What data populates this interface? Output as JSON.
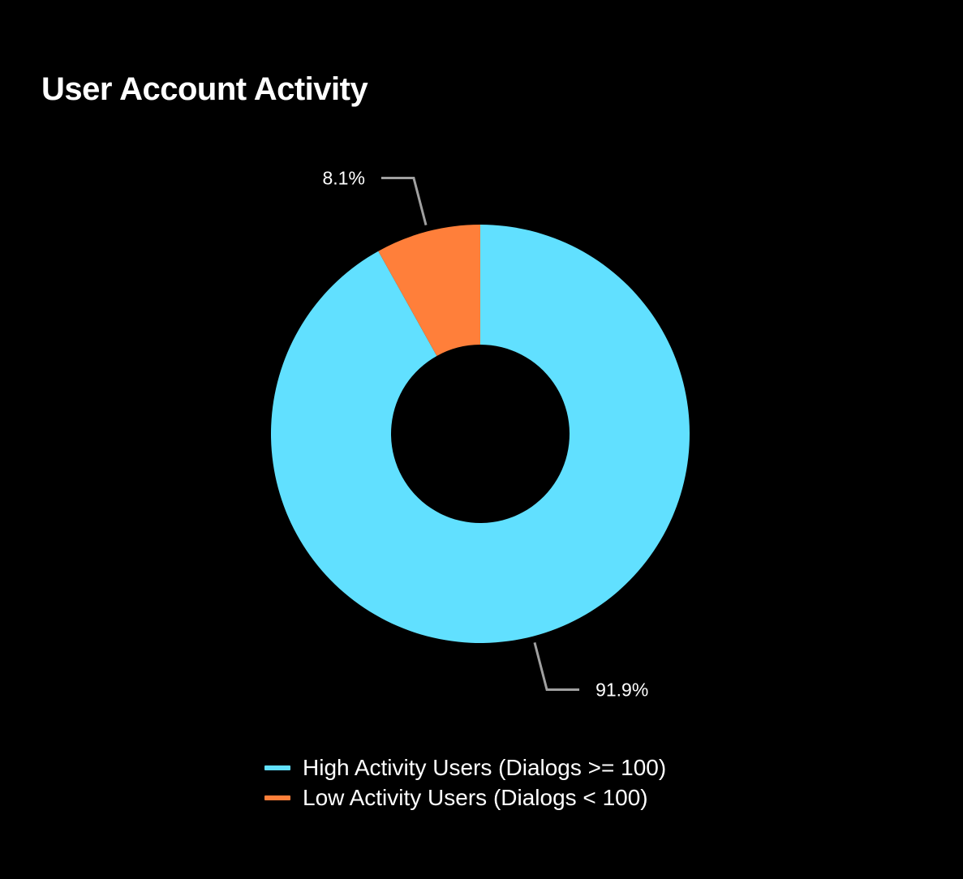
{
  "chart_data": {
    "type": "pie",
    "title": "User Account Activity",
    "hole": true,
    "slices": [
      {
        "name": "High Activity Users (Dialogs >= 100)",
        "value": 91.9,
        "label": "91.9%",
        "color": "#61E0FF"
      },
      {
        "name": "Low Activity Users (Dialogs < 100)",
        "value": 8.1,
        "label": "8.1%",
        "color": "#FF7F3A"
      }
    ],
    "legend_position": "bottom-center"
  },
  "colors": {
    "background": "#000000",
    "leader_line": "#A0A0A0"
  }
}
